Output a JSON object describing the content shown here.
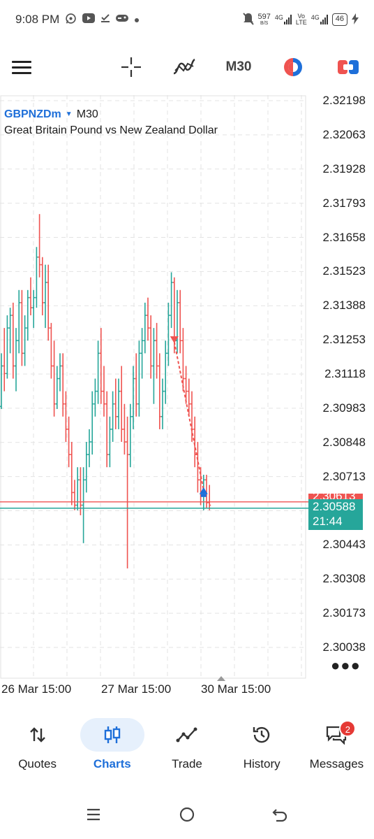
{
  "status_bar": {
    "time": "9:08 PM",
    "net_speed_value": "597",
    "net_speed_unit": "B/S",
    "sim1_label": "4G",
    "sim2_top": "Vo",
    "sim2_bottom": "LTE",
    "sim3_label": "4G",
    "battery": "46"
  },
  "toolbar": {
    "menu_icon": "hamburger-icon",
    "crosshair_icon": "crosshair-icon",
    "indicators_icon": "indicators-icon",
    "timeframe": "M30",
    "colors": {
      "accent": "#1e6fd9",
      "bear": "#ef5350",
      "bull": "#26a69a"
    }
  },
  "chart": {
    "symbol": "GBPNZDm",
    "timeframe": "M30",
    "description": "Great Britain Pound vs New Zealand Dollar",
    "current_price": "2.30588",
    "countdown": "21:44",
    "ask_price": "2.30613",
    "price_labels": [
      "2.32198",
      "2.32063",
      "2.31928",
      "2.31793",
      "2.31658",
      "2.31523",
      "2.31388",
      "2.31253",
      "2.31118",
      "2.30983",
      "2.30848",
      "2.30713",
      "2.30443",
      "2.30308",
      "2.30173",
      "2.30038"
    ],
    "date_labels": [
      "26 Mar 15:00",
      "27 Mar 15:00",
      "30 Mar 15:00"
    ]
  },
  "chart_data": {
    "type": "bar",
    "ylim": [
      2.29938,
      2.32298
    ],
    "bid_line": 2.30588,
    "ask_line": 2.30613,
    "bars": [
      {
        "o": 2.3099,
        "h": 2.312,
        "l": 2.3098,
        "c": 2.3115
      },
      {
        "o": 2.3115,
        "h": 2.313,
        "l": 2.3105,
        "c": 2.3112
      },
      {
        "o": 2.3112,
        "h": 2.3135,
        "l": 2.311,
        "c": 2.313
      },
      {
        "o": 2.313,
        "h": 2.3138,
        "l": 2.312,
        "c": 2.3135
      },
      {
        "o": 2.3135,
        "h": 2.314,
        "l": 2.311,
        "c": 2.3115
      },
      {
        "o": 2.3115,
        "h": 2.313,
        "l": 2.3105,
        "c": 2.3125
      },
      {
        "o": 2.3125,
        "h": 2.3145,
        "l": 2.312,
        "c": 2.314
      },
      {
        "o": 2.314,
        "h": 2.3145,
        "l": 2.3115,
        "c": 2.312
      },
      {
        "o": 2.312,
        "h": 2.3135,
        "l": 2.3115,
        "c": 2.313
      },
      {
        "o": 2.313,
        "h": 2.3145,
        "l": 2.3125,
        "c": 2.3142
      },
      {
        "o": 2.3142,
        "h": 2.315,
        "l": 2.3135,
        "c": 2.3138
      },
      {
        "o": 2.3138,
        "h": 2.3145,
        "l": 2.313,
        "c": 2.3142
      },
      {
        "o": 2.3142,
        "h": 2.3162,
        "l": 2.3138,
        "c": 2.3158
      },
      {
        "o": 2.3158,
        "h": 2.3175,
        "l": 2.315,
        "c": 2.3155
      },
      {
        "o": 2.3155,
        "h": 2.3158,
        "l": 2.3135,
        "c": 2.314
      },
      {
        "o": 2.314,
        "h": 2.3155,
        "l": 2.313,
        "c": 2.3148
      },
      {
        "o": 2.3148,
        "h": 2.3155,
        "l": 2.3125,
        "c": 2.313
      },
      {
        "o": 2.313,
        "h": 2.3132,
        "l": 2.311,
        "c": 2.3115
      },
      {
        "o": 2.3115,
        "h": 2.3125,
        "l": 2.3095,
        "c": 2.31
      },
      {
        "o": 2.31,
        "h": 2.3115,
        "l": 2.3098,
        "c": 2.311
      },
      {
        "o": 2.311,
        "h": 2.312,
        "l": 2.3105,
        "c": 2.3115
      },
      {
        "o": 2.3115,
        "h": 2.312,
        "l": 2.3095,
        "c": 2.31
      },
      {
        "o": 2.31,
        "h": 2.3105,
        "l": 2.3085,
        "c": 2.309
      },
      {
        "o": 2.309,
        "h": 2.3095,
        "l": 2.3075,
        "c": 2.308
      },
      {
        "o": 2.308,
        "h": 2.3085,
        "l": 2.306,
        "c": 2.3065
      },
      {
        "o": 2.3065,
        "h": 2.307,
        "l": 2.3058,
        "c": 2.306
      },
      {
        "o": 2.306,
        "h": 2.3075,
        "l": 2.3058,
        "c": 2.307
      },
      {
        "o": 2.307,
        "h": 2.3075,
        "l": 2.3056,
        "c": 2.306
      },
      {
        "o": 2.306,
        "h": 2.3075,
        "l": 2.3045,
        "c": 2.307
      },
      {
        "o": 2.307,
        "h": 2.3085,
        "l": 2.3065,
        "c": 2.308
      },
      {
        "o": 2.308,
        "h": 2.309,
        "l": 2.3075,
        "c": 2.3085
      },
      {
        "o": 2.3085,
        "h": 2.3105,
        "l": 2.308,
        "c": 2.31
      },
      {
        "o": 2.31,
        "h": 2.311,
        "l": 2.3095,
        "c": 2.3105
      },
      {
        "o": 2.3105,
        "h": 2.3125,
        "l": 2.31,
        "c": 2.312
      },
      {
        "o": 2.312,
        "h": 2.313,
        "l": 2.31,
        "c": 2.3105
      },
      {
        "o": 2.3105,
        "h": 2.3115,
        "l": 2.3095,
        "c": 2.31
      },
      {
        "o": 2.31,
        "h": 2.3105,
        "l": 2.3075,
        "c": 2.308
      },
      {
        "o": 2.308,
        "h": 2.3095,
        "l": 2.3075,
        "c": 2.309
      },
      {
        "o": 2.309,
        "h": 2.3105,
        "l": 2.3085,
        "c": 2.31
      },
      {
        "o": 2.31,
        "h": 2.311,
        "l": 2.309,
        "c": 2.3095
      },
      {
        "o": 2.3095,
        "h": 2.311,
        "l": 2.309,
        "c": 2.3105
      },
      {
        "o": 2.3105,
        "h": 2.3115,
        "l": 2.3085,
        "c": 2.309
      },
      {
        "o": 2.309,
        "h": 2.31,
        "l": 2.308,
        "c": 2.3085
      },
      {
        "o": 2.3085,
        "h": 2.3095,
        "l": 2.3035,
        "c": 2.308
      },
      {
        "o": 2.308,
        "h": 2.31,
        "l": 2.3075,
        "c": 2.3095
      },
      {
        "o": 2.3095,
        "h": 2.3115,
        "l": 2.309,
        "c": 2.311
      },
      {
        "o": 2.311,
        "h": 2.312,
        "l": 2.3095,
        "c": 2.31
      },
      {
        "o": 2.31,
        "h": 2.3125,
        "l": 2.3095,
        "c": 2.312
      },
      {
        "o": 2.312,
        "h": 2.313,
        "l": 2.311,
        "c": 2.3125
      },
      {
        "o": 2.3125,
        "h": 2.314,
        "l": 2.312,
        "c": 2.3135
      },
      {
        "o": 2.3135,
        "h": 2.3142,
        "l": 2.3125,
        "c": 2.313
      },
      {
        "o": 2.313,
        "h": 2.3135,
        "l": 2.311,
        "c": 2.3115
      },
      {
        "o": 2.3115,
        "h": 2.313,
        "l": 2.31,
        "c": 2.3125
      },
      {
        "o": 2.3125,
        "h": 2.3132,
        "l": 2.311,
        "c": 2.3115
      },
      {
        "o": 2.3115,
        "h": 2.312,
        "l": 2.309,
        "c": 2.3095
      },
      {
        "o": 2.3095,
        "h": 2.311,
        "l": 2.309,
        "c": 2.3105
      },
      {
        "o": 2.3105,
        "h": 2.3125,
        "l": 2.31,
        "c": 2.312
      },
      {
        "o": 2.312,
        "h": 2.314,
        "l": 2.3115,
        "c": 2.3135
      },
      {
        "o": 2.3135,
        "h": 2.3152,
        "l": 2.313,
        "c": 2.3148
      },
      {
        "o": 2.3148,
        "h": 2.315,
        "l": 2.312,
        "c": 2.3125
      },
      {
        "o": 2.3125,
        "h": 2.3145,
        "l": 2.312,
        "c": 2.314
      },
      {
        "o": 2.314,
        "h": 2.3145,
        "l": 2.312,
        "c": 2.3125
      },
      {
        "o": 2.3125,
        "h": 2.313,
        "l": 2.3105,
        "c": 2.311
      },
      {
        "o": 2.311,
        "h": 2.3115,
        "l": 2.31,
        "c": 2.3105
      },
      {
        "o": 2.3105,
        "h": 2.311,
        "l": 2.3095,
        "c": 2.31
      },
      {
        "o": 2.31,
        "h": 2.3105,
        "l": 2.3085,
        "c": 2.309
      },
      {
        "o": 2.309,
        "h": 2.3095,
        "l": 2.3075,
        "c": 2.308
      },
      {
        "o": 2.308,
        "h": 2.3085,
        "l": 2.3065,
        "c": 2.307
      },
      {
        "o": 2.307,
        "h": 2.3075,
        "l": 2.306,
        "c": 2.3065
      },
      {
        "o": 2.3065,
        "h": 2.3072,
        "l": 2.3058,
        "c": 2.307
      },
      {
        "o": 2.307,
        "h": 2.3072,
        "l": 2.3059,
        "c": 2.3061
      },
      {
        "o": 2.3061,
        "h": 2.3068,
        "l": 2.3058,
        "c": 2.306
      }
    ],
    "trades": [
      {
        "type": "sell",
        "time_index": 59,
        "price": 2.31245
      },
      {
        "type": "buy",
        "time_index": 69,
        "price": 2.3066
      }
    ]
  },
  "bottom_nav": {
    "items": [
      {
        "label": "Quotes",
        "icon": "quotes-icon",
        "active": false
      },
      {
        "label": "Charts",
        "icon": "charts-icon",
        "active": true
      },
      {
        "label": "Trade",
        "icon": "trade-icon",
        "active": false
      },
      {
        "label": "History",
        "icon": "history-icon",
        "active": false
      },
      {
        "label": "Messages",
        "icon": "messages-icon",
        "active": false,
        "badge": "2"
      }
    ]
  }
}
